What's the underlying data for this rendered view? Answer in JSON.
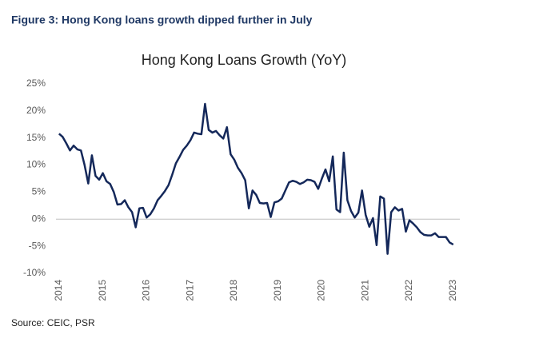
{
  "chart_data": {
    "type": "line",
    "caption": "Figure 3: Hong Kong loans growth dipped further in July",
    "title": "Hong Kong Loans Growth (YoY)",
    "source": "Source: CEIC, PSR",
    "x": [
      2014,
      2014.083,
      2014.167,
      2014.25,
      2014.333,
      2014.417,
      2014.5,
      2014.583,
      2014.667,
      2014.75,
      2014.833,
      2014.917,
      2015,
      2015.083,
      2015.167,
      2015.25,
      2015.333,
      2015.417,
      2015.5,
      2015.583,
      2015.667,
      2015.75,
      2015.833,
      2015.917,
      2016,
      2016.083,
      2016.167,
      2016.25,
      2016.333,
      2016.417,
      2016.5,
      2016.583,
      2016.667,
      2016.75,
      2016.833,
      2016.917,
      2017,
      2017.083,
      2017.167,
      2017.25,
      2017.333,
      2017.417,
      2017.5,
      2017.583,
      2017.667,
      2017.75,
      2017.833,
      2017.917,
      2018,
      2018.083,
      2018.167,
      2018.25,
      2018.333,
      2018.417,
      2018.5,
      2018.583,
      2018.667,
      2018.75,
      2018.833,
      2018.917,
      2019,
      2019.083,
      2019.167,
      2019.25,
      2019.333,
      2019.417,
      2019.5,
      2019.583,
      2019.667,
      2019.75,
      2019.833,
      2019.917,
      2020,
      2020.083,
      2020.167,
      2020.25,
      2020.333,
      2020.417,
      2020.5,
      2020.583,
      2020.667,
      2020.75,
      2020.833,
      2020.917,
      2021,
      2021.083,
      2021.167,
      2021.25,
      2021.333,
      2021.417,
      2021.5,
      2021.583,
      2021.667,
      2021.75,
      2021.833,
      2021.917,
      2022,
      2022.083,
      2022.167,
      2022.25,
      2022.333,
      2022.417,
      2022.5,
      2022.583,
      2022.667,
      2022.75,
      2022.833,
      2022.917,
      2023
    ],
    "series": [
      {
        "name": "Hong Kong Loans Growth (YoY)",
        "color": "#14285a",
        "values": [
          15.8,
          15.2,
          14.0,
          12.7,
          13.6,
          12.9,
          12.7,
          10.0,
          6.6,
          11.8,
          8.0,
          7.3,
          8.5,
          7.0,
          6.5,
          5.0,
          2.7,
          2.8,
          3.5,
          2.2,
          1.3,
          -1.5,
          2.0,
          2.1,
          0.3,
          0.9,
          2.0,
          3.5,
          4.3,
          5.2,
          6.3,
          8.2,
          10.3,
          11.5,
          12.8,
          13.6,
          14.6,
          16.0,
          15.8,
          15.7,
          21.3,
          16.5,
          16.0,
          16.3,
          15.5,
          14.9,
          17.0,
          12.0,
          11.0,
          9.5,
          8.5,
          7.2,
          2.0,
          5.3,
          4.5,
          3.0,
          2.9,
          3.0,
          0.4,
          3.1,
          3.3,
          3.8,
          5.3,
          6.8,
          7.1,
          6.9,
          6.5,
          6.8,
          7.3,
          7.2,
          6.9,
          5.6,
          7.5,
          9.2,
          7.0,
          11.6,
          1.8,
          1.3,
          12.3,
          3.5,
          1.5,
          0.3,
          1.2,
          5.3,
          0.8,
          -1.4,
          0.2,
          -4.8,
          4.2,
          3.8,
          -6.4,
          1.3,
          2.2,
          1.6,
          1.9,
          -2.3,
          -0.2,
          -0.8,
          -1.5,
          -2.4,
          -2.9,
          -3.0,
          -3.0,
          -2.6,
          -3.3,
          -3.3,
          -3.3,
          -4.3,
          -4.7
        ]
      }
    ],
    "xlim": [
      2013.93,
      2023.15
    ],
    "xticks": [
      2014,
      2015,
      2016,
      2017,
      2018,
      2019,
      2020,
      2021,
      2022,
      2023
    ],
    "ylim": [
      -10,
      25
    ],
    "yticks": [
      {
        "value": -10,
        "label": "-10%"
      },
      {
        "value": -5,
        "label": "-5%"
      },
      {
        "value": 0,
        "label": "0%"
      },
      {
        "value": 5,
        "label": "5%"
      },
      {
        "value": 10,
        "label": "10%"
      },
      {
        "value": 15,
        "label": "15%"
      },
      {
        "value": 20,
        "label": "20%"
      },
      {
        "value": 25,
        "label": "25%"
      }
    ]
  }
}
